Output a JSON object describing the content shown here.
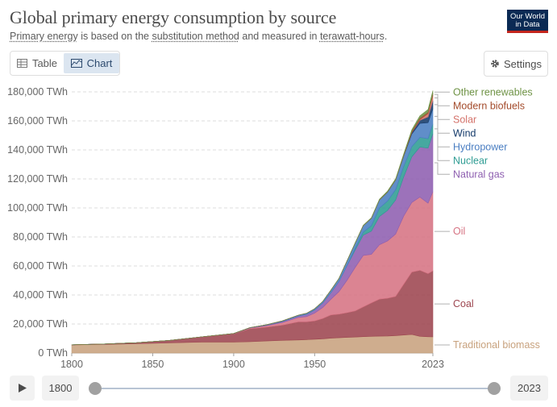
{
  "header": {
    "title": "Global primary energy consumption by source",
    "subtitle_parts": [
      "Primary energy",
      " is based on the ",
      "substitution method",
      " and measured in ",
      "terawatt-hours",
      "."
    ],
    "logo_line1": "Our World",
    "logo_line2": "in Data"
  },
  "tabs": {
    "table_label": "Table",
    "chart_label": "Chart",
    "active": "Chart"
  },
  "settings_label": "Settings",
  "timeline": {
    "start_year": "1800",
    "end_year": "2023"
  },
  "colors": {
    "Traditional biomass": "#c8a27e",
    "Coal": "#9d4650",
    "Oil": "#d67383",
    "Natural gas": "#8e5fb0",
    "Nuclear": "#2e9c93",
    "Hydropower": "#4a7ec2",
    "Wind": "#143a6a",
    "Solar": "#d4726a",
    "Modern biofuels": "#a34a2a",
    "Other renewables": "#6f9346"
  },
  "chart_data": {
    "type": "area",
    "stacked": true,
    "x": [
      1800,
      1820,
      1840,
      1860,
      1880,
      1900,
      1910,
      1920,
      1930,
      1940,
      1945,
      1950,
      1955,
      1960,
      1965,
      1970,
      1975,
      1980,
      1985,
      1990,
      1995,
      2000,
      2005,
      2010,
      2015,
      2020,
      2023
    ],
    "series": [
      {
        "name": "Traditional biomass",
        "values": [
          5556,
          5972,
          6389,
          6944,
          7500,
          7500,
          7800,
          8300,
          8700,
          9000,
          9200,
          9500,
          9800,
          10200,
          10500,
          10800,
          11000,
          11300,
          11500,
          11600,
          11700,
          12000,
          12400,
          12800,
          11500,
          11200,
          11100
        ]
      },
      {
        "name": "Coal",
        "values": [
          97,
          250,
          700,
          1700,
          3500,
          5700,
          8900,
          9500,
          10500,
          12500,
          12300,
          12600,
          14000,
          16000,
          16300,
          17000,
          18000,
          20500,
          23000,
          25500,
          26000,
          27000,
          35000,
          43000,
          45500,
          43500,
          45500
        ]
      },
      {
        "name": "Oil",
        "values": [
          0,
          0,
          0,
          0,
          100,
          200,
          500,
          1000,
          1800,
          3000,
          3600,
          5400,
          7600,
          10800,
          15500,
          22300,
          30000,
          35500,
          33500,
          37500,
          39500,
          43000,
          47000,
          48000,
          50500,
          48500,
          54500
        ]
      },
      {
        "name": "Natural gas",
        "values": [
          0,
          0,
          0,
          0,
          0,
          60,
          200,
          400,
          700,
          1000,
          1500,
          2100,
          3000,
          4500,
          6900,
          10000,
          12000,
          14000,
          16000,
          19500,
          21000,
          23500,
          27000,
          31500,
          34500,
          38000,
          40000
        ]
      },
      {
        "name": "Nuclear",
        "values": [
          0,
          0,
          0,
          0,
          0,
          0,
          0,
          0,
          0,
          0,
          0,
          0,
          0,
          0,
          100,
          200,
          1000,
          2000,
          3800,
          5800,
          6500,
          7100,
          7200,
          7000,
          6600,
          6600,
          6800
        ]
      },
      {
        "name": "Hydropower",
        "values": [
          0,
          0,
          0,
          0,
          0,
          0,
          100,
          200,
          400,
          600,
          800,
          900,
          1100,
          1700,
          2100,
          3200,
          3800,
          4500,
          5100,
          5600,
          6200,
          6700,
          7200,
          8700,
          9700,
          11000,
          10500
        ]
      },
      {
        "name": "Wind",
        "values": [
          0,
          0,
          0,
          0,
          0,
          0,
          0,
          0,
          0,
          0,
          0,
          0,
          0,
          0,
          0,
          0,
          0,
          0,
          0,
          10,
          20,
          80,
          250,
          900,
          2100,
          4000,
          5500
        ]
      },
      {
        "name": "Solar",
        "values": [
          0,
          0,
          0,
          0,
          0,
          0,
          0,
          0,
          0,
          0,
          0,
          0,
          0,
          0,
          0,
          0,
          0,
          0,
          0,
          0,
          0,
          5,
          20,
          150,
          600,
          2200,
          3800
        ]
      },
      {
        "name": "Modern biofuels",
        "values": [
          0,
          0,
          0,
          0,
          0,
          0,
          0,
          0,
          0,
          0,
          0,
          0,
          0,
          0,
          0,
          0,
          0,
          50,
          80,
          100,
          120,
          130,
          300,
          800,
          1000,
          1000,
          1100
        ]
      },
      {
        "name": "Other renewables",
        "values": [
          0,
          0,
          0,
          0,
          0,
          0,
          0,
          0,
          0,
          0,
          0,
          0,
          0,
          0,
          50,
          80,
          120,
          180,
          300,
          400,
          500,
          600,
          800,
          1100,
          1500,
          1900,
          2100
        ]
      }
    ],
    "xlim": [
      1800,
      2023
    ],
    "ylim": [
      0,
      180000
    ],
    "x_ticks": [
      "1800",
      "1850",
      "1900",
      "1950",
      "2023"
    ],
    "y_ticks": [
      "0 TWh",
      "20,000 TWh",
      "40,000 TWh",
      "60,000 TWh",
      "80,000 TWh",
      "100,000 TWh",
      "120,000 TWh",
      "140,000 TWh",
      "160,000 TWh",
      "180,000 TWh"
    ],
    "grid": true,
    "legend": "right, labels at series end"
  }
}
